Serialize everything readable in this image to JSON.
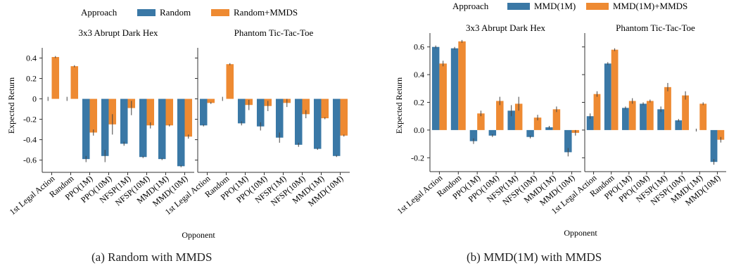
{
  "figures": [
    {
      "caption": "(a) Random with MMDS",
      "legend_title": "Approach",
      "xlabel": "Opponent",
      "ylabel": "Expected Return"
    },
    {
      "caption": "(b) MMD(1M) with MMDS",
      "legend_title": "Approach",
      "xlabel": "Opponent",
      "ylabel": "Expected Return"
    }
  ],
  "colors": {
    "series1": "#3a78a6",
    "series2": "#ee8a32",
    "axis": "#333333",
    "errorbar": "#444444"
  },
  "chart_data": [
    {
      "type": "bar",
      "ylabel": "Expected Return",
      "xlabel": "Opponent",
      "ylim": [
        -0.72,
        0.5
      ],
      "yticks": [
        0.4,
        0.2,
        0,
        -0.2,
        -0.4,
        -0.6
      ],
      "ytick_labels": [
        "0.4",
        "0.2",
        "0",
        "-0.2",
        "-0.4",
        "-0.6"
      ],
      "legend": {
        "title": "Approach",
        "placement": "top",
        "entries": [
          "Random",
          "Random+MMDS"
        ]
      },
      "categories": [
        "1st Legal Action",
        "Random",
        "PPO(1M)",
        "PPO(10M)",
        "NFSP(1M)",
        "NFSP(10M)",
        "MMD(1M)",
        "MMD(10M)"
      ],
      "panels": [
        {
          "title": "3x3 Abrupt Dark Hex",
          "series": [
            {
              "name": "Random",
              "values": [
                0.0,
                0.0,
                -0.59,
                -0.56,
                -0.44,
                -0.57,
                -0.59,
                -0.66
              ],
              "errors": [
                0.02,
                0.02,
                0.03,
                0.06,
                0.02,
                0.01,
                0.01,
                0.01
              ]
            },
            {
              "name": "Random+MMDS",
              "values": [
                0.41,
                0.32,
                -0.33,
                -0.25,
                -0.09,
                -0.26,
                -0.26,
                -0.37
              ],
              "errors": [
                0.01,
                0.01,
                0.03,
                0.1,
                0.07,
                0.03,
                0.01,
                0.02
              ]
            }
          ]
        },
        {
          "title": "Phantom Tic-Tac-Toe",
          "series": [
            {
              "name": "Random",
              "values": [
                -0.26,
                0.0,
                -0.24,
                -0.27,
                -0.38,
                -0.45,
                -0.49,
                -0.56
              ],
              "errors": [
                0.01,
                0.02,
                0.02,
                0.04,
                0.05,
                0.02,
                0.01,
                0.01
              ]
            },
            {
              "name": "Random+MMDS",
              "values": [
                -0.04,
                0.34,
                -0.06,
                -0.07,
                -0.04,
                -0.15,
                -0.19,
                -0.36
              ],
              "errors": [
                0.01,
                0.01,
                0.05,
                0.05,
                0.04,
                0.04,
                0.01,
                0.01
              ]
            }
          ]
        }
      ]
    },
    {
      "type": "bar",
      "ylabel": "Expected Return",
      "xlabel": "Opponent",
      "ylim": [
        -0.3,
        0.7
      ],
      "yticks": [
        0.6,
        0.4,
        0.2,
        0.0,
        -0.2
      ],
      "ytick_labels": [
        "0.6",
        "0.4",
        "0.2",
        "0.0",
        "-0.2"
      ],
      "legend": {
        "title": "Approach",
        "placement": "top",
        "entries": [
          "MMD(1M)",
          "MMD(1M)+MMDS"
        ]
      },
      "categories": [
        "1st Legal Action",
        "Random",
        "PPO(1M)",
        "PPO(10M)",
        "NFSP(1M)",
        "NFSP(10M)",
        "MMD(1M)",
        "MMD(10M)"
      ],
      "panels": [
        {
          "title": "3x3 Abrupt Dark Hex",
          "series": [
            {
              "name": "MMD(1M)",
              "values": [
                0.6,
                0.59,
                -0.08,
                -0.04,
                0.14,
                -0.05,
                0.02,
                -0.16
              ],
              "errors": [
                0.01,
                0.01,
                0.02,
                0.01,
                0.04,
                0.01,
                0.01,
                0.03
              ]
            },
            {
              "name": "MMD(1M)+MMDS",
              "values": [
                0.48,
                0.64,
                0.12,
                0.21,
                0.19,
                0.09,
                0.15,
                -0.02
              ],
              "errors": [
                0.02,
                0.01,
                0.02,
                0.03,
                0.05,
                0.02,
                0.02,
                0.02
              ]
            }
          ]
        },
        {
          "title": "Phantom Tic-Tac-Toe",
          "series": [
            {
              "name": "MMD(1M)",
              "values": [
                0.1,
                0.48,
                0.16,
                0.19,
                0.15,
                0.07,
                0.0,
                -0.23
              ],
              "errors": [
                0.02,
                0.01,
                0.01,
                0.01,
                0.02,
                0.01,
                0.01,
                0.02
              ]
            },
            {
              "name": "MMD(1M)+MMDS",
              "values": [
                0.26,
                0.58,
                0.21,
                0.21,
                0.31,
                0.25,
                0.19,
                -0.07
              ],
              "errors": [
                0.02,
                0.01,
                0.02,
                0.01,
                0.03,
                0.03,
                0.01,
                0.02
              ]
            }
          ]
        }
      ]
    }
  ]
}
